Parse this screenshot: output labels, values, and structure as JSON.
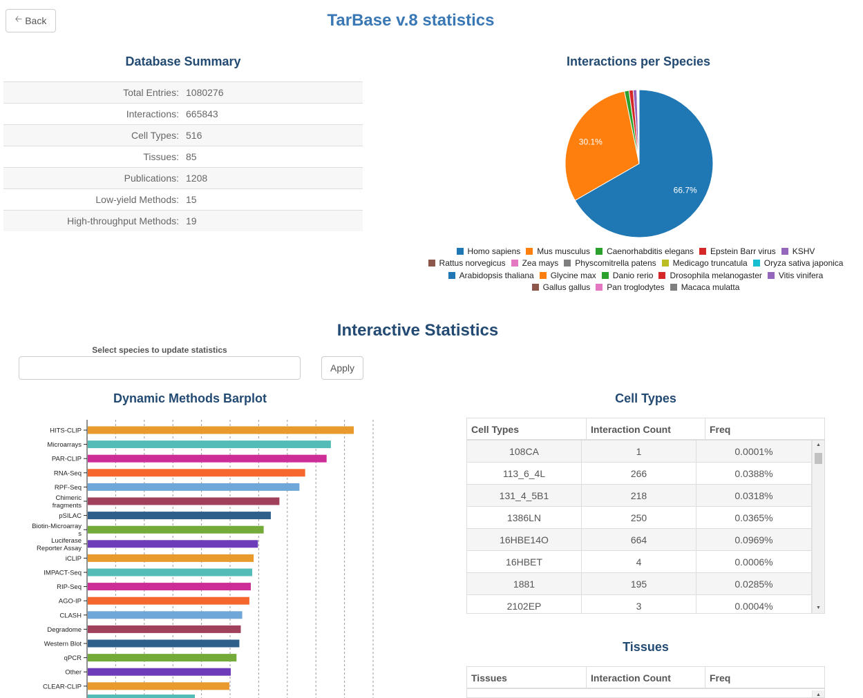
{
  "header": {
    "back_label": "Back",
    "title": "TarBase v.8 statistics"
  },
  "summary": {
    "title": "Database Summary",
    "rows": [
      {
        "label": "Total Entries:",
        "value": "1080276"
      },
      {
        "label": "Interactions:",
        "value": "665843"
      },
      {
        "label": "Cell Types:",
        "value": "516"
      },
      {
        "label": "Tissues:",
        "value": "85"
      },
      {
        "label": "Publications:",
        "value": "1208"
      },
      {
        "label": "Low-yield Methods:",
        "value": "15"
      },
      {
        "label": "High-throughput Methods:",
        "value": "19"
      }
    ]
  },
  "species_chart": {
    "title": "Interactions per Species",
    "slice_labels": [
      "66.7%",
      "30.1%"
    ],
    "legend_rows": [
      [
        {
          "name": "Homo sapiens",
          "color": "#1f77b4"
        },
        {
          "name": "Mus musculus",
          "color": "#ff7f0e"
        },
        {
          "name": "Caenorhabditis elegans",
          "color": "#2ca02c"
        },
        {
          "name": "Epstein Barr virus",
          "color": "#d62728"
        },
        {
          "name": "KSHV",
          "color": "#9467bd"
        }
      ],
      [
        {
          "name": "Rattus norvegicus",
          "color": "#8c564b"
        },
        {
          "name": "Zea mays",
          "color": "#e377c2"
        },
        {
          "name": "Physcomitrella patens",
          "color": "#7f7f7f"
        },
        {
          "name": "Medicago truncatula",
          "color": "#bcbd22"
        },
        {
          "name": "Oryza sativa japonica",
          "color": "#17becf"
        }
      ],
      [
        {
          "name": "Arabidopsis thaliana",
          "color": "#1f77b4"
        },
        {
          "name": "Glycine max",
          "color": "#ff7f0e"
        },
        {
          "name": "Danio rerio",
          "color": "#2ca02c"
        },
        {
          "name": "Drosophila melanogaster",
          "color": "#d62728"
        },
        {
          "name": "Vitis vinifera",
          "color": "#9467bd"
        }
      ],
      [
        {
          "name": "Gallus gallus",
          "color": "#8c564b"
        },
        {
          "name": "Pan troglodytes",
          "color": "#e377c2"
        },
        {
          "name": "Macaca mulatta",
          "color": "#7f7f7f"
        }
      ]
    ]
  },
  "interactive": {
    "title": "Interactive Statistics",
    "select_label": "Select species to update statistics",
    "species_input_value": "",
    "apply_label": "Apply"
  },
  "methods_chart_title": "Dynamic Methods Barplot",
  "cell_types": {
    "title": "Cell Types",
    "columns": [
      "Cell Types",
      "Interaction Count",
      "Freq"
    ],
    "rows": [
      [
        "108CA",
        "1",
        "0.0001%"
      ],
      [
        "113_6_4L",
        "266",
        "0.0388%"
      ],
      [
        "131_4_5B1",
        "218",
        "0.0318%"
      ],
      [
        "1386LN",
        "250",
        "0.0365%"
      ],
      [
        "16HBE14O",
        "664",
        "0.0969%"
      ],
      [
        "16HBET",
        "4",
        "0.0006%"
      ],
      [
        "1881",
        "195",
        "0.0285%"
      ],
      [
        "2102EP",
        "3",
        "0.0004%"
      ]
    ]
  },
  "tissues": {
    "title": "Tissues",
    "columns": [
      "Tissues",
      "Interaction Count",
      "Freq"
    ]
  },
  "chart_data": [
    {
      "type": "pie",
      "title": "Interactions per Species",
      "categories": [
        "Homo sapiens",
        "Mus musculus",
        "Caenorhabditis elegans",
        "Epstein Barr virus",
        "KSHV",
        "Rattus norvegicus",
        "Zea mays",
        "Physcomitrella patens",
        "Medicago truncatula",
        "Oryza sativa japonica",
        "Arabidopsis thaliana",
        "Glycine max",
        "Danio rerio",
        "Drosophila melanogaster",
        "Vitis vinifera",
        "Gallus gallus",
        "Pan troglodytes",
        "Macaca mulatta"
      ],
      "values": [
        66.7,
        30.1,
        1.0,
        0.9,
        0.8,
        0.1,
        0.05,
        0.05,
        0.05,
        0.05,
        0.04,
        0.03,
        0.03,
        0.03,
        0.03,
        0.02,
        0.01,
        0.01
      ],
      "colors": [
        "#1f77b4",
        "#ff7f0e",
        "#2ca02c",
        "#d62728",
        "#9467bd",
        "#8c564b",
        "#e377c2",
        "#7f7f7f",
        "#bcbd22",
        "#17becf",
        "#1f77b4",
        "#ff7f0e",
        "#2ca02c",
        "#d62728",
        "#9467bd",
        "#8c564b",
        "#e377c2",
        "#7f7f7f"
      ],
      "legend": "bottom"
    },
    {
      "type": "bar",
      "orientation": "horizontal",
      "title": "Dynamic Methods Barplot",
      "categories": [
        "HITS-CLIP",
        "Microarrays",
        "PAR-CLIP",
        "RNA-Seq",
        "RPF-Seq",
        "Chimeric fragments",
        "pSILAC",
        "Biotin-Microarrays",
        "Luciferase Reporter Assay",
        "iCLIP",
        "IMPACT-Seq",
        "RIP-Seq",
        "AGO-IP",
        "CLASH",
        "Degradome",
        "Western Blot",
        "qPCR",
        "Other",
        "CLEAR-CLIP"
      ],
      "category_lines": [
        [
          "HITS-CLIP"
        ],
        [
          "Microarrays"
        ],
        [
          "PAR-CLIP"
        ],
        [
          "RNA-Seq"
        ],
        [
          "RPF-Seq"
        ],
        [
          "Chimeric",
          "fragments"
        ],
        [
          "pSILAC"
        ],
        [
          "Biotin-Microarray",
          "s"
        ],
        [
          "Luciferase",
          "Reporter Assay"
        ],
        [
          "iCLIP"
        ],
        [
          "IMPACT-Seq"
        ],
        [
          "RIP-Seq"
        ],
        [
          "AGO-IP"
        ],
        [
          "CLASH"
        ],
        [
          "Degradome"
        ],
        [
          "Western Blot"
        ],
        [
          "qPCR"
        ],
        [
          "Other"
        ],
        [
          "CLEAR-CLIP"
        ]
      ],
      "values": [
        9.3,
        8.5,
        8.35,
        7.6,
        7.4,
        6.7,
        6.4,
        6.15,
        5.95,
        5.8,
        5.75,
        5.7,
        5.65,
        5.4,
        5.35,
        5.3,
        5.2,
        5.0,
        4.95
      ],
      "colors": [
        "#e89a2c",
        "#54bcb6",
        "#cc2d96",
        "#f5672c",
        "#6fa8d8",
        "#a0405a",
        "#2e5f8a",
        "#74aa3a",
        "#6d3cb8",
        "#e89a2c",
        "#54bcb6",
        "#cc2d96",
        "#f5672c",
        "#6fa8d8",
        "#a0405a",
        "#2e5f8a",
        "#74aa3a",
        "#6d3cb8",
        "#e89a2c"
      ],
      "xlim": [
        0,
        10
      ],
      "grid": true
    }
  ]
}
